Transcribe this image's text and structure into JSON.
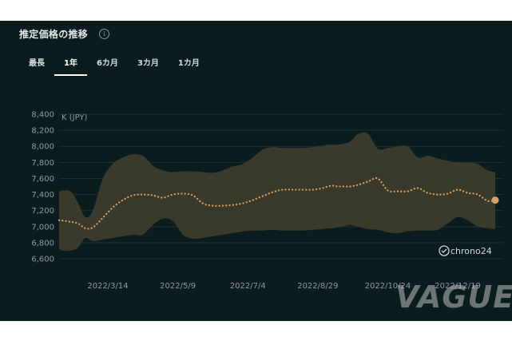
{
  "header": {
    "title": "推定価格の推移",
    "info_icon": "info-icon"
  },
  "tabs": [
    {
      "label": "最長",
      "active": false
    },
    {
      "label": "1年",
      "active": true
    },
    {
      "label": "6カ月",
      "active": false
    },
    {
      "label": "3カ月",
      "active": false
    },
    {
      "label": "1カ月",
      "active": false
    }
  ],
  "brand": {
    "logo_text": "chrono24",
    "watermark": "VAGUE"
  },
  "colors": {
    "background": "#0b1c1f",
    "band": "#3a3a2c",
    "line": "#d9a463",
    "grid": "#1f3033",
    "text": "#8f9a9c"
  },
  "chart_data": {
    "type": "area",
    "ylabel": "K (JPY)",
    "ylim": [
      6600,
      8400
    ],
    "yticks": [
      6600,
      6800,
      7000,
      7200,
      7400,
      7600,
      7800,
      8000,
      8200,
      8400
    ],
    "ytick_labels": [
      "6,600",
      "6,800",
      "7,000",
      "7,200",
      "7,400",
      "7,600",
      "7,800",
      "8,000",
      "8,200",
      "8,400"
    ],
    "x_tick_labels": [
      "2022/3/14",
      "2022/5/9",
      "2022/7/4",
      "2022/8/29",
      "2022/10/24",
      "2022/12/19"
    ],
    "x_tick_positions": [
      36,
      92,
      148,
      204,
      260,
      316
    ],
    "xlim": [
      -3,
      346
    ],
    "grid": true,
    "series": [
      {
        "name": "",
        "role": "mean",
        "x": [
          -3,
          0,
          6,
          12,
          18,
          24,
          32,
          40,
          48,
          56,
          64,
          72,
          80,
          88,
          96,
          104,
          112,
          120,
          128,
          136,
          144,
          152,
          160,
          168,
          176,
          184,
          192,
          200,
          208,
          212,
          216,
          220,
          224,
          230,
          236,
          244,
          252,
          260,
          268,
          276,
          284,
          292,
          300,
          308,
          316,
          324,
          332,
          340,
          346
        ],
        "y": [
          7080,
          7075,
          7060,
          7040,
          6980,
          6990,
          7110,
          7240,
          7330,
          7390,
          7400,
          7390,
          7360,
          7400,
          7410,
          7390,
          7290,
          7260,
          7260,
          7270,
          7290,
          7330,
          7380,
          7430,
          7460,
          7460,
          7460,
          7460,
          7480,
          7500,
          7510,
          7500,
          7500,
          7500,
          7520,
          7560,
          7600,
          7450,
          7440,
          7440,
          7480,
          7420,
          7400,
          7410,
          7460,
          7420,
          7400,
          7320,
          7330
        ]
      },
      {
        "name": "",
        "role": "upper",
        "x": [
          -3,
          0,
          6,
          12,
          18,
          24,
          32,
          40,
          48,
          56,
          64,
          72,
          80,
          88,
          96,
          104,
          112,
          120,
          128,
          136,
          144,
          152,
          160,
          168,
          176,
          184,
          192,
          200,
          208,
          212,
          216,
          220,
          224,
          230,
          236,
          244,
          252,
          260,
          268,
          276,
          284,
          292,
          300,
          308,
          316,
          324,
          332,
          340,
          346
        ],
        "y": [
          7440,
          7450,
          7440,
          7300,
          7120,
          7200,
          7600,
          7780,
          7860,
          7900,
          7880,
          7760,
          7700,
          7680,
          7690,
          7690,
          7680,
          7670,
          7700,
          7750,
          7780,
          7860,
          7960,
          7990,
          7980,
          7980,
          7980,
          7990,
          8010,
          8020,
          8020,
          8020,
          8030,
          8060,
          8150,
          8160,
          7970,
          7980,
          8000,
          8000,
          7860,
          7880,
          7850,
          7820,
          7800,
          7800,
          7780,
          7700,
          7680
        ]
      },
      {
        "name": "",
        "role": "lower",
        "x": [
          -3,
          0,
          6,
          12,
          18,
          24,
          32,
          40,
          48,
          56,
          64,
          72,
          80,
          88,
          96,
          104,
          112,
          120,
          128,
          136,
          144,
          152,
          160,
          168,
          176,
          184,
          192,
          200,
          208,
          212,
          216,
          220,
          224,
          230,
          236,
          244,
          252,
          260,
          268,
          276,
          284,
          292,
          300,
          308,
          316,
          324,
          332,
          340,
          346
        ],
        "y": [
          6720,
          6700,
          6700,
          6740,
          6860,
          6820,
          6840,
          6860,
          6880,
          6900,
          6900,
          7020,
          7100,
          7070,
          6900,
          6850,
          6860,
          6880,
          6900,
          6920,
          6940,
          6950,
          6950,
          6960,
          6950,
          6950,
          6950,
          6960,
          6970,
          6980,
          6980,
          6990,
          7000,
          7020,
          7000,
          6970,
          6960,
          6930,
          6920,
          6940,
          6950,
          6950,
          6960,
          7040,
          7120,
          7080,
          7000,
          6980,
          6970
        ]
      }
    ],
    "end_marker": {
      "x": 346,
      "y": 7330
    }
  }
}
